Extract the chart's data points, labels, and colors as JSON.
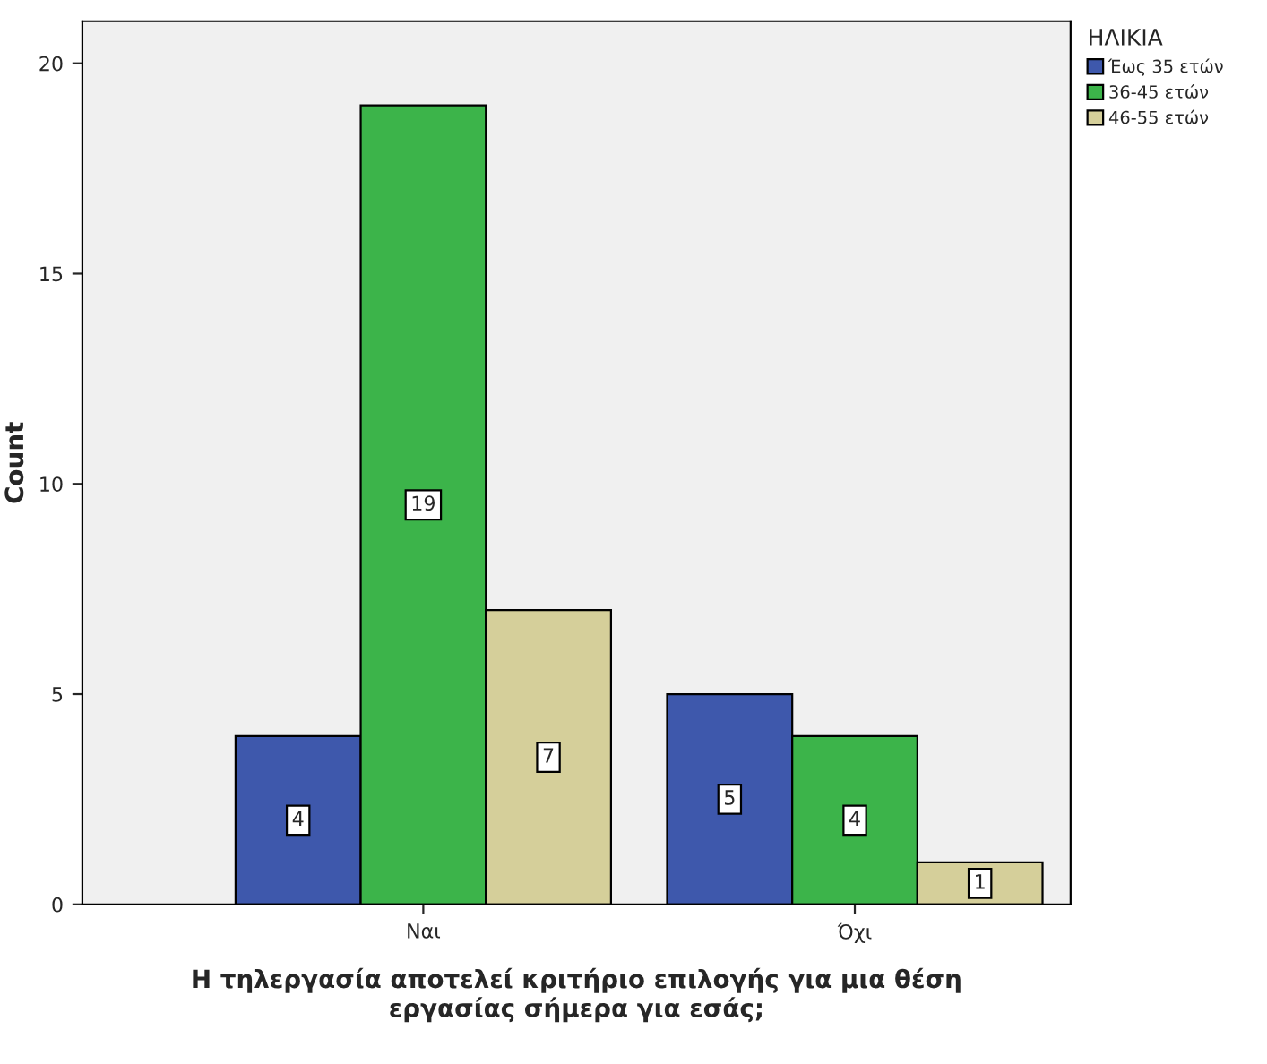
{
  "chart_data": {
    "type": "bar",
    "xlabel": "Η τηλεργασία αποτελεί κριτήριο επιλογής για μια θέση\nεργασίας σήμερα για εσάς;",
    "ylabel": "Count",
    "legend_title": "ΗΛΙΚΙΑ",
    "categories": [
      "Ναι",
      "Όχι"
    ],
    "series": [
      {
        "name": "Έως 35 ετών",
        "color": "#3e58ac",
        "values": [
          4,
          5
        ]
      },
      {
        "name": "36-45 ετών",
        "color": "#3cb44a",
        "values": [
          19,
          4
        ]
      },
      {
        "name": "46-55 ετών",
        "color": "#d5cf9a",
        "values": [
          7,
          1
        ]
      }
    ],
    "ylim": [
      0,
      21
    ],
    "yticks": [
      0,
      5,
      10,
      15,
      20
    ],
    "data_labels": true,
    "grid": false,
    "legend": "top right"
  }
}
